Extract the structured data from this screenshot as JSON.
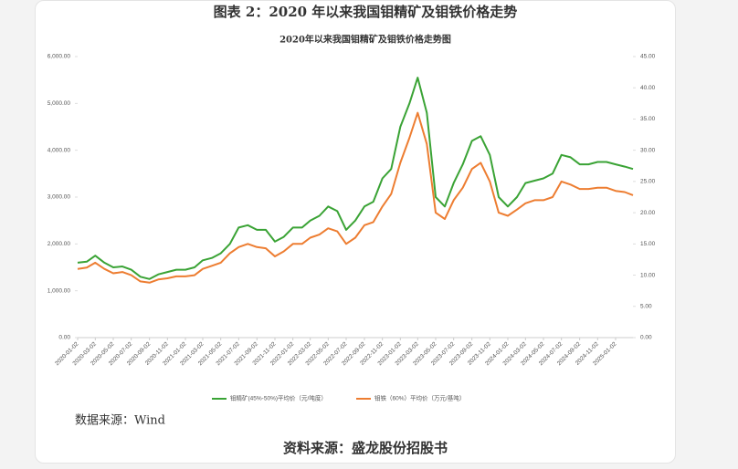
{
  "header": {
    "title": "图表 2：2020 年以来我国钼精矿及钼铁价格走势"
  },
  "chart_data": {
    "type": "line",
    "title": "2020年以来我国钼精矿及钼铁价格走势图",
    "x": [
      "2020-01-02",
      "2020-02-02",
      "2020-03-02",
      "2020-04-02",
      "2020-05-02",
      "2020-06-02",
      "2020-07-02",
      "2020-08-02",
      "2020-09-02",
      "2020-10-02",
      "2020-11-02",
      "2020-12-02",
      "2021-01-02",
      "2021-02-02",
      "2021-03-02",
      "2021-04-02",
      "2021-05-02",
      "2021-06-02",
      "2021-07-02",
      "2021-08-02",
      "2021-09-02",
      "2021-10-02",
      "2021-11-02",
      "2021-12-02",
      "2022-01-02",
      "2022-02-02",
      "2022-03-02",
      "2022-04-02",
      "2022-05-02",
      "2022-06-02",
      "2022-07-02",
      "2022-08-02",
      "2022-09-02",
      "2022-10-02",
      "2022-11-02",
      "2022-12-02",
      "2023-01-02",
      "2023-02-02",
      "2023-03-02",
      "2023-04-02",
      "2023-05-02",
      "2023-06-02",
      "2023-07-02",
      "2023-08-02",
      "2023-09-02",
      "2023-10-02",
      "2023-11-02",
      "2023-12-02",
      "2024-01-02",
      "2024-02-02",
      "2024-03-02",
      "2024-04-02",
      "2024-05-02",
      "2024-06-02",
      "2024-07-02",
      "2024-08-02",
      "2024-09-02",
      "2024-10-02",
      "2024-11-02",
      "2024-12-02",
      "2025-01-02",
      "2025-02-02",
      "2025-03-02"
    ],
    "xlim": [
      "2020-01-02",
      "2025-03-02"
    ],
    "xticks": [
      "2020-01-02",
      "2020-03-02",
      "2020-05-02",
      "2020-07-02",
      "2020-09-02",
      "2020-11-02",
      "2021-01-02",
      "2021-03-02",
      "2021-05-02",
      "2021-07-02",
      "2021-09-02",
      "2021-11-02",
      "2022-01-02",
      "2022-03-02",
      "2022-05-02",
      "2022-07-02",
      "2022-09-02",
      "2022-11-02",
      "2023-01-02",
      "2023-03-02",
      "2023-05-02",
      "2023-07-02",
      "2023-09-02",
      "2023-11-02",
      "2024-01-02",
      "2024-03-02",
      "2024-05-02",
      "2024-07-02",
      "2024-09-02",
      "2024-11-02",
      "2025-01-02"
    ],
    "ylim": [
      0,
      6000
    ],
    "yticks": [
      {
        "value": 0,
        "label": "0.00"
      },
      {
        "value": 1000,
        "label": "1,000.00"
      },
      {
        "value": 2000,
        "label": "2,000.00"
      },
      {
        "value": 3000,
        "label": "3,000.00"
      },
      {
        "value": 4000,
        "label": "4,000.00"
      },
      {
        "value": 5000,
        "label": "5,000.00"
      },
      {
        "value": 6000,
        "label": "6,000.00"
      }
    ],
    "y2lim": [
      0,
      45
    ],
    "y2ticks": [
      {
        "value": 0,
        "label": "0.00"
      },
      {
        "value": 5,
        "label": "5.00"
      },
      {
        "value": 10,
        "label": "10.00"
      },
      {
        "value": 15,
        "label": "15.00"
      },
      {
        "value": 20,
        "label": "20.00"
      },
      {
        "value": 25,
        "label": "25.00"
      },
      {
        "value": 30,
        "label": "30.00"
      },
      {
        "value": 35,
        "label": "35.00"
      },
      {
        "value": 40,
        "label": "40.00"
      },
      {
        "value": 45,
        "label": "45.00"
      }
    ],
    "grid": false,
    "legend": "bottom",
    "series": [
      {
        "name": "钼精矿(45%-50%)平均价（元/吨度）",
        "color": "#3aa335",
        "axis": "y",
        "values": [
          1600,
          1620,
          1750,
          1600,
          1500,
          1520,
          1450,
          1300,
          1250,
          1350,
          1400,
          1450,
          1450,
          1500,
          1650,
          1700,
          1800,
          2000,
          2350,
          2400,
          2300,
          2300,
          2050,
          2150,
          2350,
          2350,
          2500,
          2600,
          2800,
          2700,
          2300,
          2500,
          2800,
          2900,
          3400,
          3600,
          4500,
          5000,
          5550,
          4800,
          3000,
          2800,
          3300,
          3700,
          4200,
          4300,
          3900,
          3000,
          2800,
          3000,
          3300,
          3350,
          3400,
          3500,
          3900,
          3850,
          3700,
          3700,
          3750,
          3750,
          3700,
          3650,
          3600
        ]
      },
      {
        "name": "钼铁（60%）平均价（万元/基吨）",
        "color": "#ed7d31",
        "axis": "y2",
        "values": [
          11,
          11.2,
          12,
          11,
          10.3,
          10.5,
          10,
          9,
          8.8,
          9.3,
          9.5,
          9.8,
          9.8,
          10,
          11,
          11.5,
          12,
          13.5,
          14.5,
          15,
          14.5,
          14.3,
          13,
          13.8,
          15,
          15,
          16,
          16.5,
          17.5,
          17,
          15,
          16,
          18,
          18.5,
          21,
          23,
          28,
          32,
          36,
          31,
          20,
          19,
          22,
          24,
          27,
          28,
          25,
          20,
          19.5,
          20.5,
          21.5,
          22,
          22,
          22.5,
          25,
          24.5,
          23.8,
          23.8,
          24,
          24,
          23.5,
          23.3,
          22.8
        ]
      }
    ]
  },
  "footer": {
    "data_source": "数据来源：Wind",
    "source": "资料来源：盛龙股份招股书"
  }
}
